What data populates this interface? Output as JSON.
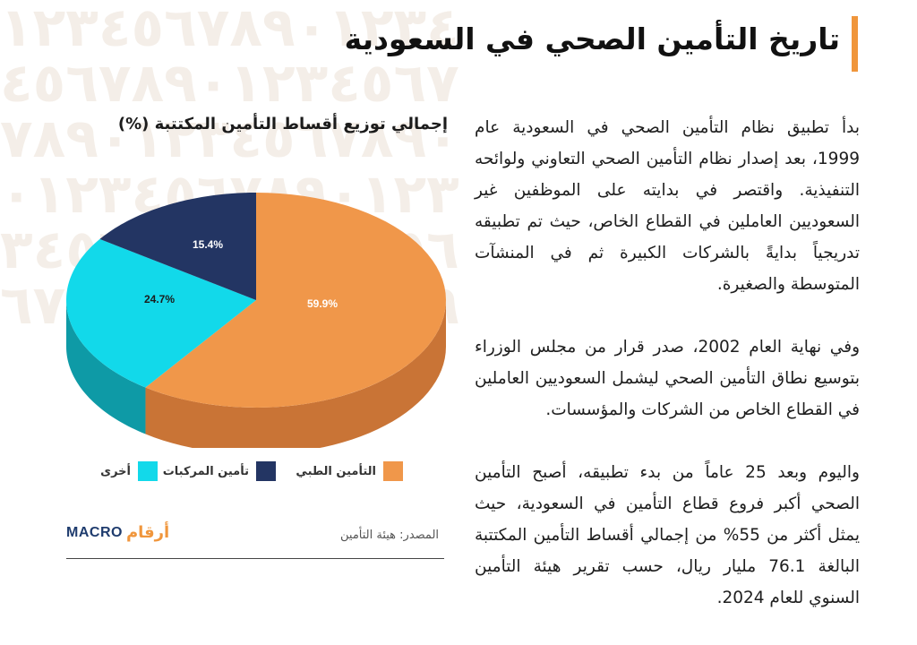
{
  "header": {
    "title": "تاريخ التأمين الصحي في السعودية",
    "accent_color": "#f0963c"
  },
  "body": {
    "paragraphs": [
      "بدأ تطبيق نظام التأمين الصحي في السعودية عام 1999، بعد إصدار نظام التأمين الصحي التعاوني ولوائحه التنفيذية. واقتصر في بدايته على الموظفين غير السعوديين العاملين في القطاع الخاص، حيث تم تطبيقه تدريجياً بدايةً بالشركات الكبيرة ثم في المنشآت المتوسطة والصغيرة.",
      "وفي نهاية العام 2002، صدر قرار من مجلس الوزراء بتوسيع نطاق التأمين الصحي ليشمل السعوديين العاملين في القطاع الخاص من الشركات والمؤسسات.",
      "واليوم وبعد 25 عاماً من بدء تطبيقه، أصبح التأمين الصحي أكبر فروع قطاع التأمين في السعودية، حيث يمثل أكثر من 55% من إجمالي أقساط التأمين المكتتبة البالغة 76.1 مليار ريال، حسب تقرير هيئة التأمين السنوي للعام 2024."
    ]
  },
  "chart_data": {
    "type": "pie",
    "title": "إجمالي توزيع أقساط التأمين المكتتبة (%)",
    "slices": [
      {
        "name": "التأمين الطبي",
        "value": 59.9,
        "label": "59.9%",
        "color": "#f0974a",
        "side_color": "#c97436"
      },
      {
        "name": "أخرى",
        "value": 24.7,
        "label": "24.7%",
        "color": "#12d9ea",
        "side_color": "#0e9aa6"
      },
      {
        "name": "تأمين المركبات",
        "value": 15.4,
        "label": "15.4%",
        "color": "#233563",
        "side_color": "#1a2748"
      }
    ],
    "legend_placement": "bottom"
  },
  "footer": {
    "source": "المصدر: هيئة التأمين",
    "logo_arabic": "أرقام",
    "logo_latin": "MACRO"
  },
  "background_pattern": "١٢٣٤٥٦٧٨٩٠"
}
